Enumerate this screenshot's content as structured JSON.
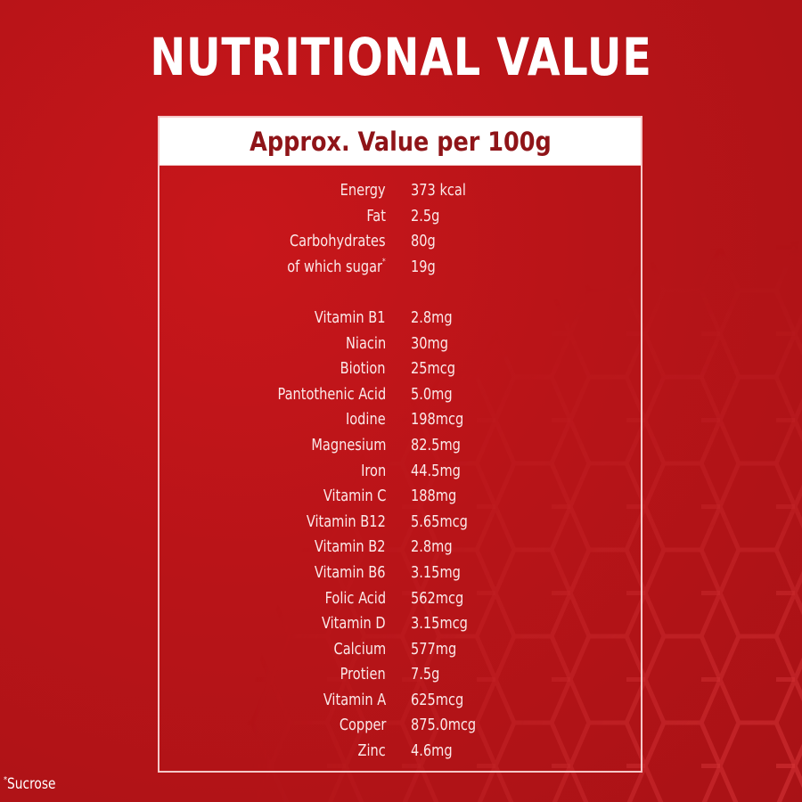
{
  "title": "NUTRITIONAL VALUE",
  "panel": {
    "header": "Approx. Value per 100g",
    "macros": [
      {
        "label": "Energy",
        "value": "373 kcal"
      },
      {
        "label": "Fat",
        "value": "2.5g"
      },
      {
        "label": "Carbohydrates",
        "value": "80g"
      },
      {
        "label": "of which sugar",
        "marker": "*",
        "value": "19g"
      }
    ],
    "micros": [
      {
        "label": "Vitamin B1",
        "value": "2.8mg"
      },
      {
        "label": "Niacin",
        "value": "30mg"
      },
      {
        "label": "Biotion",
        "value": "25mcg"
      },
      {
        "label": "Pantothenic Acid",
        "value": "5.0mg"
      },
      {
        "label": "Iodine",
        "value": "198mcg"
      },
      {
        "label": "Magnesium",
        "value": "82.5mg"
      },
      {
        "label": "Iron",
        "value": "44.5mg"
      },
      {
        "label": "Vitamin C",
        "value": "188mg"
      },
      {
        "label": "Vitamin B12",
        "value": "5.65mcg"
      },
      {
        "label": "Vitamin B2",
        "value": "2.8mg"
      },
      {
        "label": "Vitamin B6",
        "value": "3.15mg"
      },
      {
        "label": "Folic Acid",
        "value": "562mcg"
      },
      {
        "label": "Vitamin D",
        "value": "3.15mcg"
      },
      {
        "label": "Calcium",
        "value": "577mg"
      },
      {
        "label": "Protien",
        "value": "7.5g"
      },
      {
        "label": "Vitamin A",
        "value": "625mcg"
      },
      {
        "label": "Copper",
        "value": "875.0mcg"
      },
      {
        "label": "Zinc",
        "value": "4.6mg"
      }
    ]
  },
  "footnote": {
    "marker": "*",
    "text": "Sucrose"
  },
  "colors": {
    "background": "#b81418",
    "header_bg": "#ffffff",
    "header_text": "#8f1418",
    "border": "#f5c8c8",
    "text": "#fbe9e9"
  }
}
